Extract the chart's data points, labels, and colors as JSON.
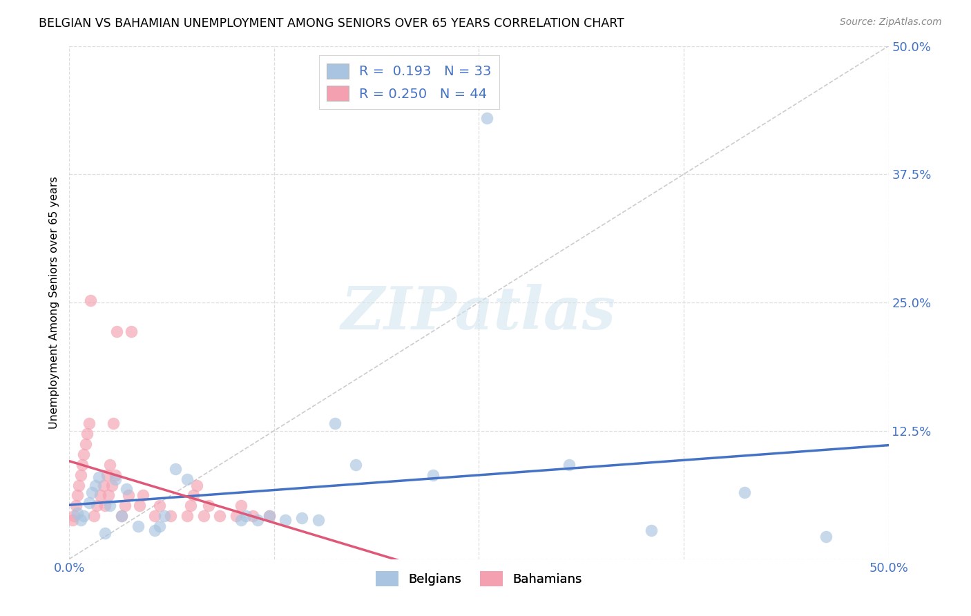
{
  "title": "BELGIAN VS BAHAMIAN UNEMPLOYMENT AMONG SENIORS OVER 65 YEARS CORRELATION CHART",
  "source": "Source: ZipAtlas.com",
  "ylabel": "Unemployment Among Seniors over 65 years",
  "xlim": [
    0.0,
    0.5
  ],
  "ylim": [
    0.0,
    0.5
  ],
  "xtick_vals": [
    0.0,
    0.125,
    0.25,
    0.375,
    0.5
  ],
  "ytick_vals": [
    0.0,
    0.125,
    0.25,
    0.375,
    0.5
  ],
  "xticklabels": [
    "0.0%",
    "",
    "",
    "",
    "50.0%"
  ],
  "yticklabels_right": [
    "",
    "12.5%",
    "25.0%",
    "37.5%",
    "50.0%"
  ],
  "belgian_color": "#a8c4e0",
  "bahamian_color": "#f4a0b0",
  "belgian_line_color": "#4472c4",
  "bahamian_line_color": "#e05878",
  "diag_color": "#cccccc",
  "belgian_R": 0.193,
  "belgian_N": 33,
  "bahamian_R": 0.25,
  "bahamian_N": 44,
  "watermark": "ZIPatlas",
  "belgian_x": [
    0.005,
    0.007,
    0.009,
    0.012,
    0.014,
    0.016,
    0.018,
    0.022,
    0.025,
    0.028,
    0.032,
    0.035,
    0.042,
    0.052,
    0.055,
    0.058,
    0.065,
    0.072,
    0.105,
    0.108,
    0.115,
    0.122,
    0.132,
    0.142,
    0.152,
    0.162,
    0.175,
    0.222,
    0.255,
    0.305,
    0.355,
    0.412,
    0.462
  ],
  "belgian_y": [
    0.045,
    0.038,
    0.042,
    0.055,
    0.065,
    0.072,
    0.08,
    0.025,
    0.052,
    0.078,
    0.042,
    0.068,
    0.032,
    0.028,
    0.032,
    0.042,
    0.088,
    0.078,
    0.038,
    0.042,
    0.038,
    0.042,
    0.038,
    0.04,
    0.038,
    0.132,
    0.092,
    0.082,
    0.43,
    0.092,
    0.028,
    0.065,
    0.022
  ],
  "bahamian_x": [
    0.002,
    0.003,
    0.004,
    0.005,
    0.006,
    0.007,
    0.008,
    0.009,
    0.01,
    0.011,
    0.012,
    0.013,
    0.015,
    0.017,
    0.019,
    0.021,
    0.023,
    0.025,
    0.027,
    0.022,
    0.024,
    0.026,
    0.028,
    0.029,
    0.032,
    0.034,
    0.036,
    0.038,
    0.043,
    0.045,
    0.052,
    0.055,
    0.062,
    0.072,
    0.074,
    0.076,
    0.078,
    0.082,
    0.085,
    0.092,
    0.102,
    0.105,
    0.112,
    0.122
  ],
  "bahamian_y": [
    0.038,
    0.042,
    0.052,
    0.062,
    0.072,
    0.082,
    0.092,
    0.102,
    0.112,
    0.122,
    0.132,
    0.252,
    0.042,
    0.052,
    0.062,
    0.072,
    0.082,
    0.092,
    0.132,
    0.052,
    0.062,
    0.072,
    0.082,
    0.222,
    0.042,
    0.052,
    0.062,
    0.222,
    0.052,
    0.062,
    0.042,
    0.052,
    0.042,
    0.042,
    0.052,
    0.062,
    0.072,
    0.042,
    0.052,
    0.042,
    0.042,
    0.052,
    0.042,
    0.042
  ]
}
